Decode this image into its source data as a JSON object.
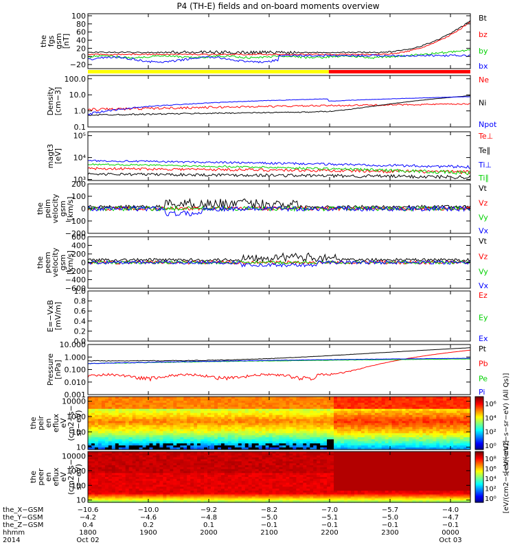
{
  "title": "P4 (TH-E) fields and on-board moments overview",
  "colors": {
    "black": "#000000",
    "red": "#ff0000",
    "green": "#00d000",
    "blue": "#0000ff",
    "yellow": "#ffff00"
  },
  "chart_data": [
    {
      "type": "line",
      "id": "b",
      "ylabel": [
        "the",
        "fgs",
        "gsm",
        "[nT]"
      ],
      "ylim": [
        -30,
        105
      ],
      "yticks": [
        {
          "v": 100,
          "t": "100"
        },
        {
          "v": 80,
          "t": "80"
        },
        {
          "v": 60,
          "t": "60"
        },
        {
          "v": 40,
          "t": "40"
        },
        {
          "v": 20,
          "t": "20"
        },
        {
          "v": 0,
          "t": "0"
        },
        {
          "v": -20,
          "t": "−20"
        }
      ],
      "series": [
        {
          "name": "Bt",
          "color": "black"
        },
        {
          "name": "bz",
          "color": "red"
        },
        {
          "name": "by",
          "color": "green"
        },
        {
          "name": "bx",
          "color": "blue"
        }
      ],
      "bar": {
        "split": 0.63,
        "left": "yellow",
        "right": "red"
      }
    },
    {
      "type": "line",
      "id": "dens",
      "log": true,
      "ylabel": [
        "Density",
        "[cm−3]"
      ],
      "ylim": [
        0.1,
        160
      ],
      "yticks": [
        {
          "v": 100,
          "t": "100.0"
        },
        {
          "v": 10,
          "t": "10.0"
        },
        {
          "v": 1,
          "t": "1.0"
        },
        {
          "v": 0.1,
          "t": "0.1"
        }
      ],
      "series": [
        {
          "name": "Ne",
          "color": "red"
        },
        {
          "name": "Ni",
          "color": "black"
        },
        {
          "name": "Npot",
          "color": "blue"
        }
      ]
    },
    {
      "type": "line",
      "id": "temp",
      "log": true,
      "ylabel": [
        "magt3",
        "[eV]"
      ],
      "ylim": [
        900,
        150000
      ],
      "yticks": [
        {
          "v": 100000,
          "t": "10⁵"
        },
        {
          "v": 10000,
          "t": "10⁴"
        },
        {
          "v": 1000,
          "t": "10³"
        }
      ],
      "series": [
        {
          "name": "Te⊥",
          "color": "red"
        },
        {
          "name": "Te∥",
          "color": "black"
        },
        {
          "name": "Ti⊥",
          "color": "blue"
        },
        {
          "name": "Ti∥",
          "color": "green"
        }
      ]
    },
    {
      "type": "line",
      "id": "vi",
      "ylabel": [
        "the",
        "peim",
        "velocity",
        "gsm",
        "[km/s]"
      ],
      "ylim": [
        -200,
        200
      ],
      "yticks": [
        {
          "v": 200,
          "t": "200"
        },
        {
          "v": 100,
          "t": "100"
        },
        {
          "v": 0,
          "t": "0"
        },
        {
          "v": -100,
          "t": "−100"
        },
        {
          "v": -200,
          "t": "−200"
        }
      ],
      "series": [
        {
          "name": "Vt",
          "color": "black"
        },
        {
          "name": "Vz",
          "color": "red"
        },
        {
          "name": "Vy",
          "color": "green"
        },
        {
          "name": "Vx",
          "color": "blue"
        }
      ]
    },
    {
      "type": "line",
      "id": "ve",
      "ylabel": [
        "the",
        "peem",
        "velocity",
        "gsm",
        "[km/s]"
      ],
      "ylim": [
        -600,
        600
      ],
      "yticks": [
        {
          "v": 600,
          "t": "600"
        },
        {
          "v": 400,
          "t": "400"
        },
        {
          "v": 200,
          "t": "200"
        },
        {
          "v": 0,
          "t": "0"
        },
        {
          "v": -200,
          "t": "−200"
        },
        {
          "v": -400,
          "t": "−400"
        },
        {
          "v": -600,
          "t": "−600"
        }
      ],
      "series": [
        {
          "name": "Vt",
          "color": "black"
        },
        {
          "name": "Vz",
          "color": "red"
        },
        {
          "name": "Vy",
          "color": "green"
        },
        {
          "name": "Vx",
          "color": "blue"
        }
      ]
    },
    {
      "type": "line",
      "id": "ef",
      "ylabel": [
        "E=−VxB",
        "[mV/m]"
      ],
      "ylim": [
        0,
        1
      ],
      "yticks": [
        {
          "v": 1,
          "t": "1.0"
        },
        {
          "v": 0.8,
          "t": "0.8"
        },
        {
          "v": 0.6,
          "t": "0.6"
        },
        {
          "v": 0.4,
          "t": "0.4"
        },
        {
          "v": 0.2,
          "t": "0.2"
        },
        {
          "v": 0,
          "t": "0.0"
        }
      ],
      "series": [
        {
          "name": "Ez",
          "color": "red"
        },
        {
          "name": "Ey",
          "color": "green"
        },
        {
          "name": "Ex",
          "color": "blue"
        }
      ]
    },
    {
      "type": "line",
      "id": "press",
      "log": true,
      "ylabel": [
        "Pressure",
        "[nPa]"
      ],
      "ylim": [
        0.001,
        10
      ],
      "yticks": [
        {
          "v": 10,
          "t": "10.000"
        },
        {
          "v": 1,
          "t": "1.000"
        },
        {
          "v": 0.1,
          "t": "0.100"
        },
        {
          "v": 0.01,
          "t": "0.010"
        },
        {
          "v": 0.001,
          "t": "0.001"
        }
      ],
      "series": [
        {
          "name": "Pt",
          "color": "black"
        },
        {
          "name": "Pb",
          "color": "red"
        },
        {
          "name": "Pe",
          "color": "green"
        },
        {
          "name": "Pi",
          "color": "blue"
        }
      ]
    },
    {
      "type": "heatmap",
      "id": "ieflux",
      "log": true,
      "ylabel": [
        "the",
        "peir",
        "en",
        "eflux",
        "eV",
        "(cm2−s−",
        "sr−eV)"
      ],
      "ylim": [
        7,
        20000
      ],
      "yticks": [
        {
          "v": 10000,
          "t": "10000"
        },
        {
          "v": 1000,
          "t": "1000"
        },
        {
          "v": 100,
          "t": "100"
        },
        {
          "v": 10,
          "t": "10"
        }
      ],
      "colorbar": {
        "ticks": [
          "10⁶",
          "10⁴",
          "10²",
          "10⁰"
        ],
        "label": "[eV/(cm2−s−sr−eV) (All Qs)]"
      }
    },
    {
      "type": "heatmap",
      "id": "eeflux",
      "log": true,
      "ylabel": [
        "the",
        "peer",
        "en",
        "eflux",
        "eV",
        "(cm2−s−",
        "sr−eV)"
      ],
      "ylim": [
        7,
        20000
      ],
      "yticks": [
        {
          "v": 10000,
          "t": "10000"
        },
        {
          "v": 1000,
          "t": "1000"
        },
        {
          "v": 100,
          "t": "100"
        },
        {
          "v": 10,
          "t": "10"
        }
      ],
      "colorbar": {
        "ticks": [
          "10⁸",
          "10⁶",
          "10⁴",
          "10²",
          "10⁰"
        ],
        "label": "[eV/(cm2−s−sr−eV)]"
      }
    }
  ],
  "xaxis": {
    "row_labels": [
      "the_X−GSM",
      "the_Y−GSM",
      "the_Z−GSM",
      "hhmm",
      "2014"
    ],
    "ticks": [
      {
        "f": 0.0,
        "vals": [
          "−10.6",
          "−4.2",
          "0.4",
          "1800",
          "Oct 02"
        ]
      },
      {
        "f": 0.158,
        "vals": [
          "−10.0",
          "−4.6",
          "0.2",
          "1900",
          ""
        ]
      },
      {
        "f": 0.316,
        "vals": [
          "−9.2",
          "−4.8",
          "0.1",
          "2000",
          ""
        ]
      },
      {
        "f": 0.474,
        "vals": [
          "−8.2",
          "−5.0",
          "−0.1",
          "2100",
          ""
        ]
      },
      {
        "f": 0.632,
        "vals": [
          "−7.0",
          "−5.1",
          "−0.1",
          "2200",
          ""
        ]
      },
      {
        "f": 0.79,
        "vals": [
          "−5.7",
          "−5.0",
          "−0.1",
          "2300",
          ""
        ]
      },
      {
        "f": 0.948,
        "vals": [
          "−4.0",
          "−4.7",
          "−0.1",
          "0000",
          "Oct 03"
        ]
      }
    ]
  }
}
